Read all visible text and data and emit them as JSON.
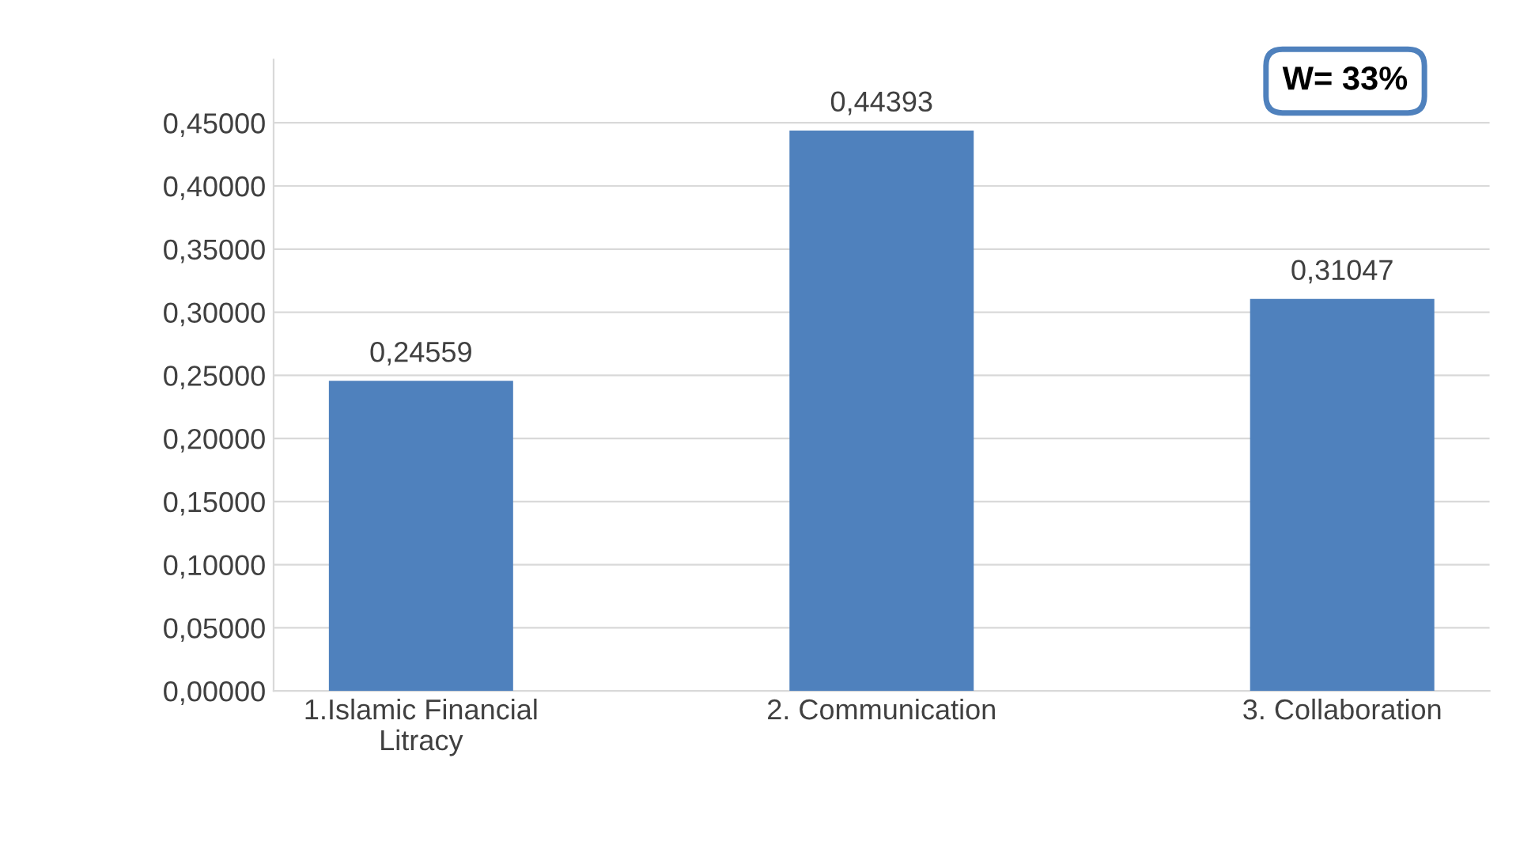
{
  "chart_data": {
    "type": "bar",
    "categories": [
      "1.Islamic Financial\nLitracy",
      "2. Communication",
      "3. Collaboration"
    ],
    "values": [
      0.24559,
      0.44393,
      0.31047
    ],
    "value_labels": [
      "0,24559",
      "0,44393",
      "0,31047"
    ],
    "color": "#4f81bd",
    "ylim": [
      0,
      0.5
    ],
    "yticks": [
      {
        "value": 0,
        "label": "0,00000"
      },
      {
        "value": 0.05,
        "label": "0,05000"
      },
      {
        "value": 0.1,
        "label": "0,10000"
      },
      {
        "value": 0.15,
        "label": "0,15000"
      },
      {
        "value": 0.2,
        "label": "0,20000"
      },
      {
        "value": 0.25,
        "label": "0,25000"
      },
      {
        "value": 0.3,
        "label": "0,30000"
      },
      {
        "value": 0.35,
        "label": "0,35000"
      },
      {
        "value": 0.4,
        "label": "0,40000"
      },
      {
        "value": 0.45,
        "label": "0,45000"
      }
    ],
    "grid": "y",
    "annotations": [
      "W= 33%"
    ]
  }
}
